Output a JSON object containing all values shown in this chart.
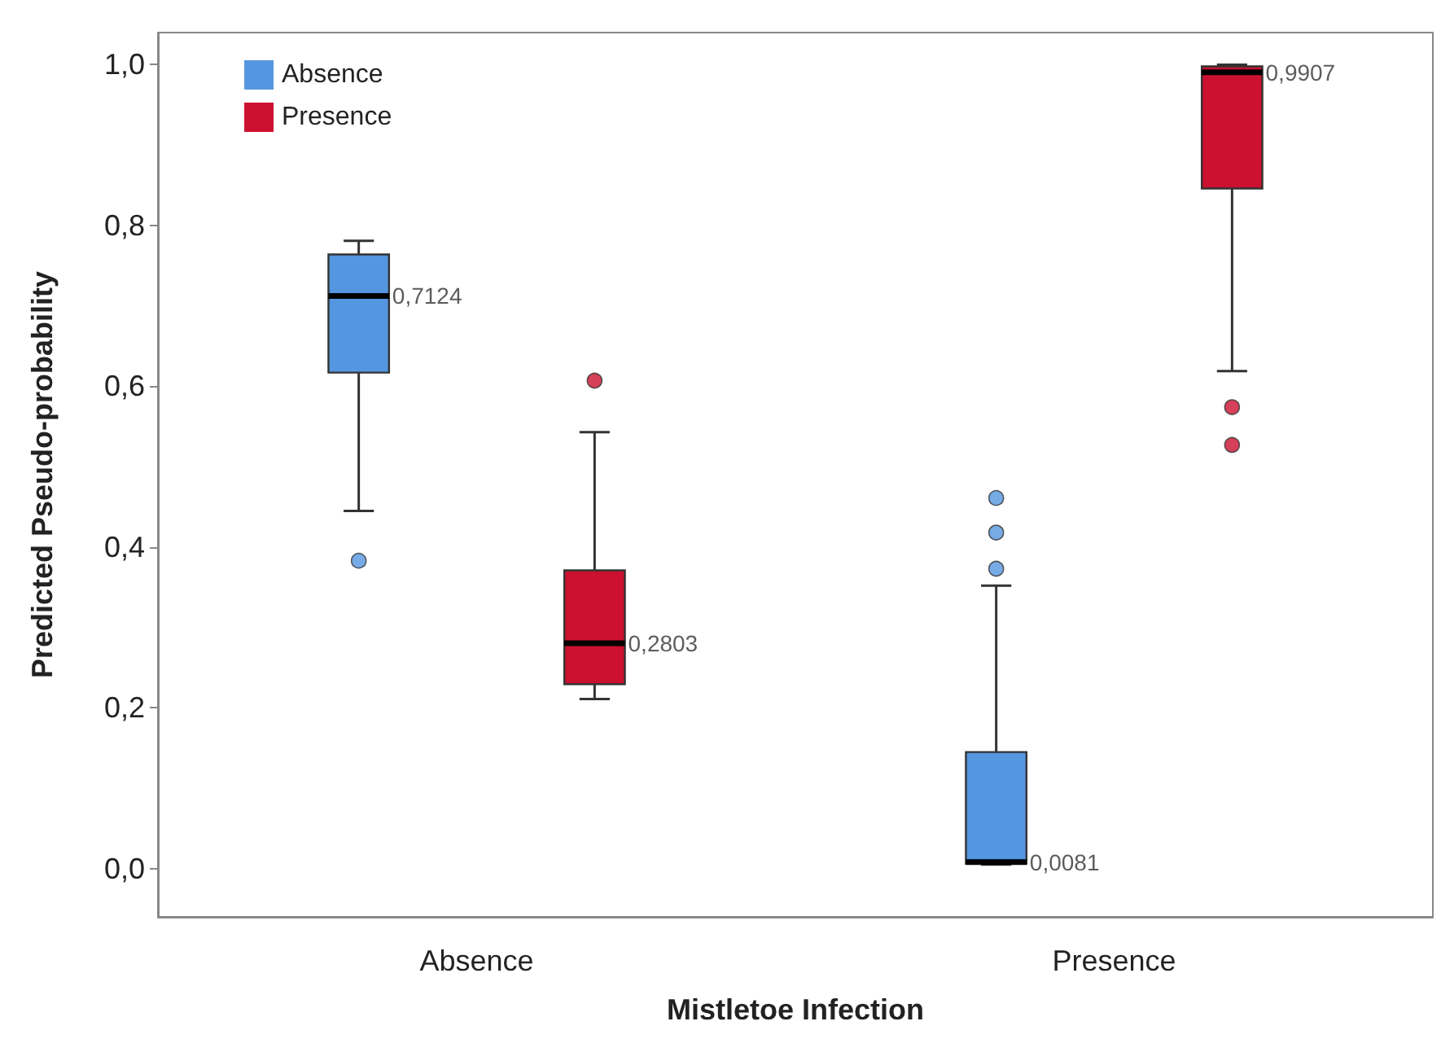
{
  "chart_data": {
    "type": "box",
    "xlabel": "Mistletoe Infection",
    "ylabel": "Predicted Pseudo-probability",
    "categories": [
      "Absence",
      "Presence"
    ],
    "series": [
      {
        "name": "Absence",
        "color": "#5596e0",
        "boxes": [
          {
            "low": 0.445,
            "q1": 0.617,
            "median": 0.7124,
            "q3": 0.764,
            "high": 0.781,
            "outliers": [
              0.383
            ]
          },
          {
            "low": 0.005,
            "q1": 0.006,
            "median": 0.0081,
            "q3": 0.145,
            "high": 0.352,
            "outliers": [
              0.373,
              0.418,
              0.461
            ]
          }
        ]
      },
      {
        "name": "Presence",
        "color": "#cc1030",
        "boxes": [
          {
            "low": 0.211,
            "q1": 0.2295,
            "median": 0.2803,
            "q3": 0.371,
            "high": 0.543,
            "outliers": [
              0.607
            ]
          },
          {
            "low": 0.619,
            "q1": 0.846,
            "median": 0.9907,
            "q3": 0.998,
            "high": 1.0,
            "outliers": [
              0.574,
              0.527
            ]
          }
        ]
      }
    ],
    "annotations": [
      "0,7124",
      "0,2803",
      "0,0081",
      "0,9907"
    ],
    "ylim": [
      -0.06,
      1.04
    ],
    "yticks": [
      {
        "value": 0,
        "label": "0,0"
      },
      {
        "value": 0.2,
        "label": "0,2"
      },
      {
        "value": 0.4,
        "label": "0,4"
      },
      {
        "value": 0.6,
        "label": "0,6"
      },
      {
        "value": 0.8,
        "label": "0,8"
      },
      {
        "value": 1,
        "label": "1,0"
      }
    ],
    "grid": false,
    "legend": "top left"
  }
}
